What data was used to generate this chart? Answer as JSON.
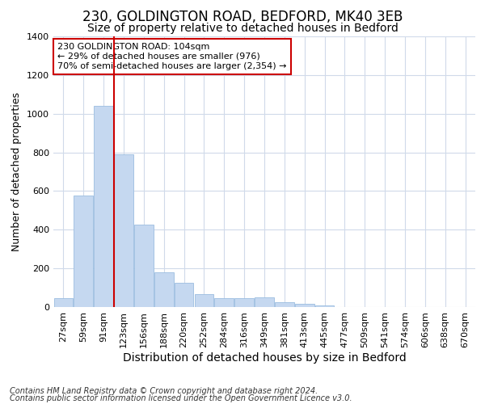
{
  "title1": "230, GOLDINGTON ROAD, BEDFORD, MK40 3EB",
  "title2": "Size of property relative to detached houses in Bedford",
  "xlabel": "Distribution of detached houses by size in Bedford",
  "ylabel": "Number of detached properties",
  "categories": [
    "27sqm",
    "59sqm",
    "91sqm",
    "123sqm",
    "156sqm",
    "188sqm",
    "220sqm",
    "252sqm",
    "284sqm",
    "316sqm",
    "349sqm",
    "381sqm",
    "413sqm",
    "445sqm",
    "477sqm",
    "509sqm",
    "541sqm",
    "574sqm",
    "606sqm",
    "638sqm",
    "670sqm"
  ],
  "values": [
    48,
    575,
    1042,
    790,
    425,
    180,
    127,
    65,
    48,
    48,
    50,
    25,
    18,
    10,
    0,
    0,
    0,
    0,
    0,
    0,
    0
  ],
  "bar_color": "#c5d8f0",
  "bar_edge_color": "#9bbde0",
  "vline_color": "#cc0000",
  "vline_x_idx": 2.5,
  "annotation_text": "230 GOLDINGTON ROAD: 104sqm\n← 29% of detached houses are smaller (976)\n70% of semi-detached houses are larger (2,354) →",
  "annotation_box_facecolor": "white",
  "annotation_box_edgecolor": "#cc0000",
  "ylim": [
    0,
    1400
  ],
  "yticks": [
    0,
    200,
    400,
    600,
    800,
    1000,
    1200,
    1400
  ],
  "footnote1": "Contains HM Land Registry data © Crown copyright and database right 2024.",
  "footnote2": "Contains public sector information licensed under the Open Government Licence v3.0.",
  "fig_facecolor": "#ffffff",
  "plot_facecolor": "#ffffff",
  "grid_color": "#d0daea",
  "title1_fontsize": 12,
  "title2_fontsize": 10,
  "xlabel_fontsize": 10,
  "ylabel_fontsize": 9,
  "tick_fontsize": 8,
  "annot_fontsize": 8,
  "footnote_fontsize": 7
}
